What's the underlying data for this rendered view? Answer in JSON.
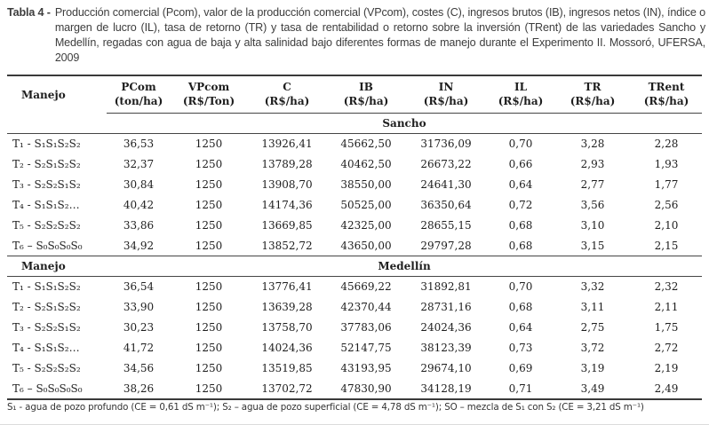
{
  "caption": {
    "label": "Tabla 4 -",
    "text": "Producción comercial (Pcom), valor de la producción comercial (VPcom), costes (C), ingresos brutos (IB), ingresos netos (IN), índice o margen de lucro (IL), tasa de retorno (TR) y tasa de rentabilidad o retorno sobre la inversión (TRent) de las variedades Sancho y Medellín, regadas con agua de baja y alta salinidad bajo diferentes formas de manejo durante el Experimento II. Mossoró, UFERSA, 2009"
  },
  "table": {
    "row_header": "Manejo",
    "columns": [
      {
        "name": "PCom",
        "unit": "(ton/ha)"
      },
      {
        "name": "VPcom",
        "unit": "(R$/Ton)"
      },
      {
        "name": "C",
        "unit": "(R$/ha)"
      },
      {
        "name": "IB",
        "unit": "(R$/ha)"
      },
      {
        "name": "IN",
        "unit": "(R$/ha)"
      },
      {
        "name": "IL",
        "unit": "(R$/ha)"
      },
      {
        "name": "TR",
        "unit": "(R$/ha)"
      },
      {
        "name": "TRent",
        "unit": "(R$/ha)"
      }
    ],
    "sections": [
      {
        "name": "Sancho",
        "rows": [
          {
            "manejo": "T₁ - S₁S₁S₂S₂",
            "values": [
              "36,53",
              "1250",
              "13926,41",
              "45662,50",
              "31736,09",
              "0,70",
              "3,28",
              "2,28"
            ]
          },
          {
            "manejo": "T₂ - S₂S₁S₂S₂",
            "values": [
              "32,37",
              "1250",
              "13789,28",
              "40462,50",
              "26673,22",
              "0,66",
              "2,93",
              "1,93"
            ]
          },
          {
            "manejo": "T₃ - S₂S₂S₁S₂",
            "values": [
              "30,84",
              "1250",
              "13908,70",
              "38550,00",
              "24641,30",
              "0,64",
              "2,77",
              "1,77"
            ]
          },
          {
            "manejo": "T₄ - S₁S₁S₂…",
            "values": [
              "40,42",
              "1250",
              "14174,36",
              "50525,00",
              "36350,64",
              "0,72",
              "3,56",
              "2,56"
            ]
          },
          {
            "manejo": "T₅ - S₂S₂S₂S₂",
            "values": [
              "33,86",
              "1250",
              "13669,85",
              "42325,00",
              "28655,15",
              "0,68",
              "3,10",
              "2,10"
            ]
          },
          {
            "manejo": "T₆ – S₀S₀S₀S₀",
            "values": [
              "34,92",
              "1250",
              "13852,72",
              "43650,00",
              "29797,28",
              "0,68",
              "3,15",
              "2,15"
            ]
          }
        ]
      },
      {
        "name": "Medellín",
        "rows": [
          {
            "manejo": "T₁ - S₁S₁S₂S₂",
            "values": [
              "36,54",
              "1250",
              "13776,41",
              "45669,22",
              "31892,81",
              "0,70",
              "3,32",
              "2,32"
            ]
          },
          {
            "manejo": "T₂ - S₂S₁S₂S₂",
            "values": [
              "33,90",
              "1250",
              "13639,28",
              "42370,44",
              "28731,16",
              "0,68",
              "3,11",
              "2,11"
            ]
          },
          {
            "manejo": "T₃ - S₂S₂S₁S₂",
            "values": [
              "30,23",
              "1250",
              "13758,70",
              "37783,06",
              "24024,36",
              "0,64",
              "2,75",
              "1,75"
            ]
          },
          {
            "manejo": "T₄ - S₁S₁S₂…",
            "values": [
              "41,72",
              "1250",
              "14024,36",
              "52147,75",
              "38123,39",
              "0,73",
              "3,72",
              "2,72"
            ]
          },
          {
            "manejo": "T₅ - S₂S₂S₂S₂",
            "values": [
              "34,56",
              "1250",
              "13519,85",
              "43193,95",
              "29674,10",
              "0,69",
              "3,19",
              "2,19"
            ]
          },
          {
            "manejo": "T₆ – S₀S₀S₀S₀",
            "values": [
              "38,26",
              "1250",
              "13702,72",
              "47830,90",
              "34128,19",
              "0,71",
              "3,49",
              "2,49"
            ]
          }
        ]
      }
    ]
  },
  "footnote": "S₁ - agua de pozo profundo (CE = 0,61 dS m⁻¹); S₂ – agua de pozo superficial (CE = 4,78 dS m⁻¹); SO – mezcla de S₁ con S₂ (CE = 3,21 dS m⁻¹)",
  "colors": {
    "rule_heavy": "#3a3a3a",
    "rule_light": "#454545",
    "caption_text": "#3d3d3d",
    "table_text": "#1e1e1e"
  }
}
